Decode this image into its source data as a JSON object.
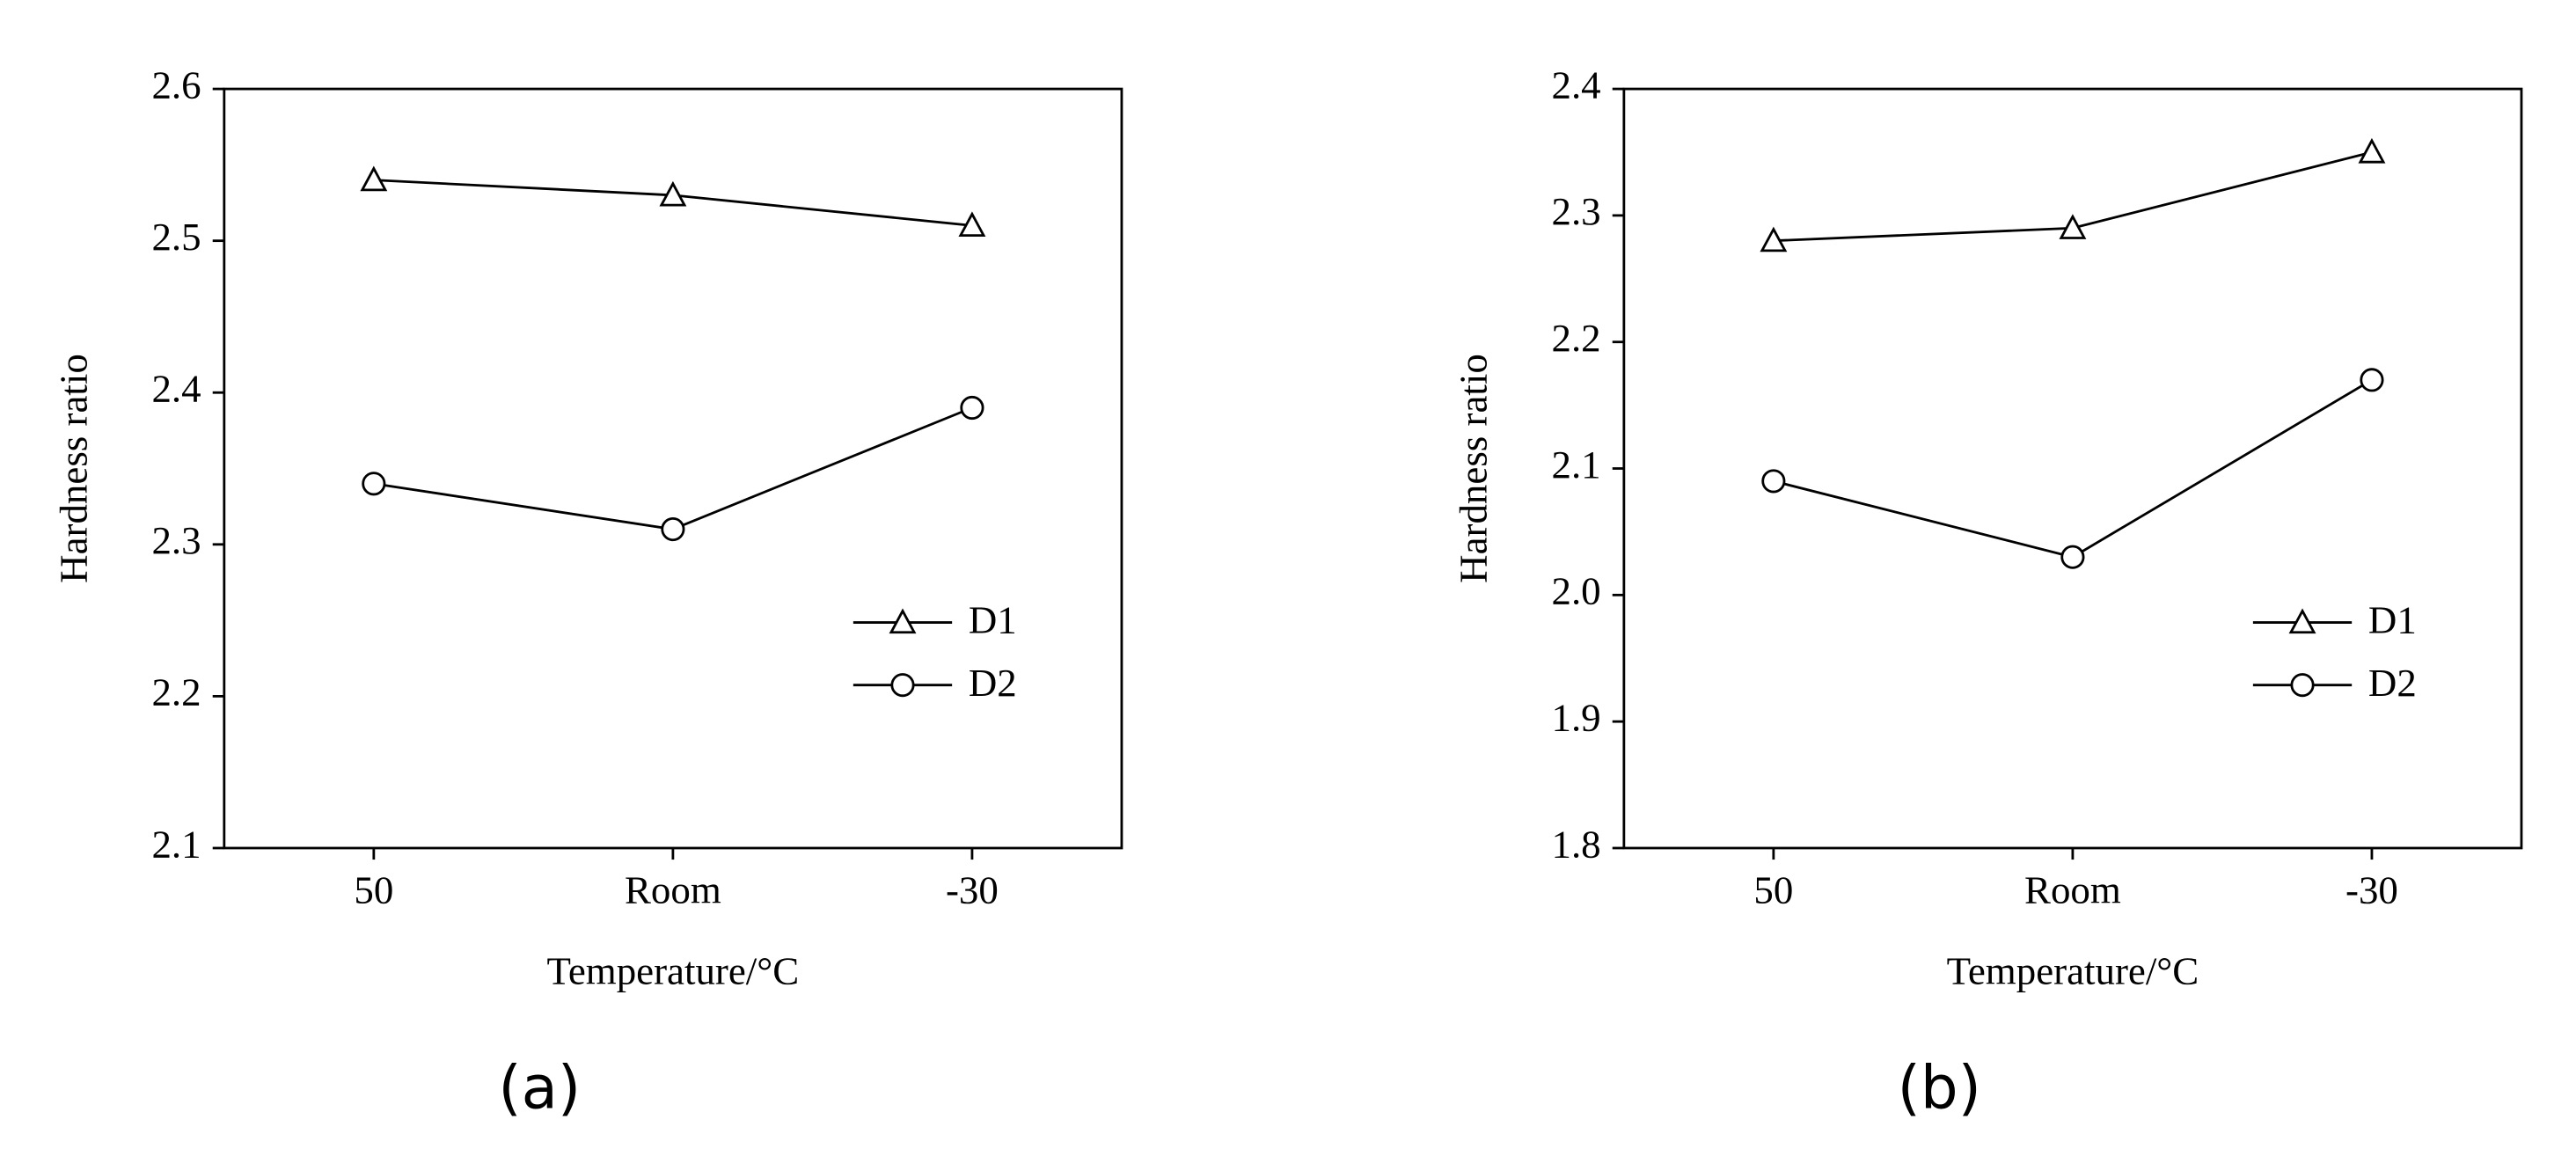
{
  "chart_data": [
    {
      "type": "line",
      "categories": [
        "50",
        "Room",
        "-30"
      ],
      "series": [
        {
          "name": "D1",
          "color": "#000000",
          "marker": "triangle",
          "values": [
            2.54,
            2.53,
            2.51
          ]
        },
        {
          "name": "D2",
          "color": "#000000",
          "marker": "circle",
          "values": [
            2.34,
            2.31,
            2.39
          ]
        }
      ],
      "ylim": [
        2.1,
        2.6
      ],
      "yticks": [
        2.1,
        2.2,
        2.3,
        2.4,
        2.5,
        2.6
      ],
      "x_label": "Temperature/°C",
      "y_label": "Hardness ratio",
      "caption": "(a)",
      "legend": "lower right"
    },
    {
      "type": "line",
      "categories": [
        "50",
        "Room",
        "-30"
      ],
      "series": [
        {
          "name": "D1",
          "color": "#000000",
          "marker": "triangle",
          "values": [
            2.28,
            2.29,
            2.35
          ]
        },
        {
          "name": "D2",
          "color": "#000000",
          "marker": "circle",
          "values": [
            2.09,
            2.03,
            2.17
          ]
        }
      ],
      "ylim": [
        1.8,
        2.4
      ],
      "yticks": [
        1.8,
        1.9,
        {
          "value": 2.0,
          "label": "2.0"
        },
        2.1,
        2.2,
        2.3,
        2.4
      ],
      "x_label": "Temperature/°C",
      "y_label": "Hardness ratio",
      "caption": "(b)",
      "legend": "lower right"
    }
  ]
}
